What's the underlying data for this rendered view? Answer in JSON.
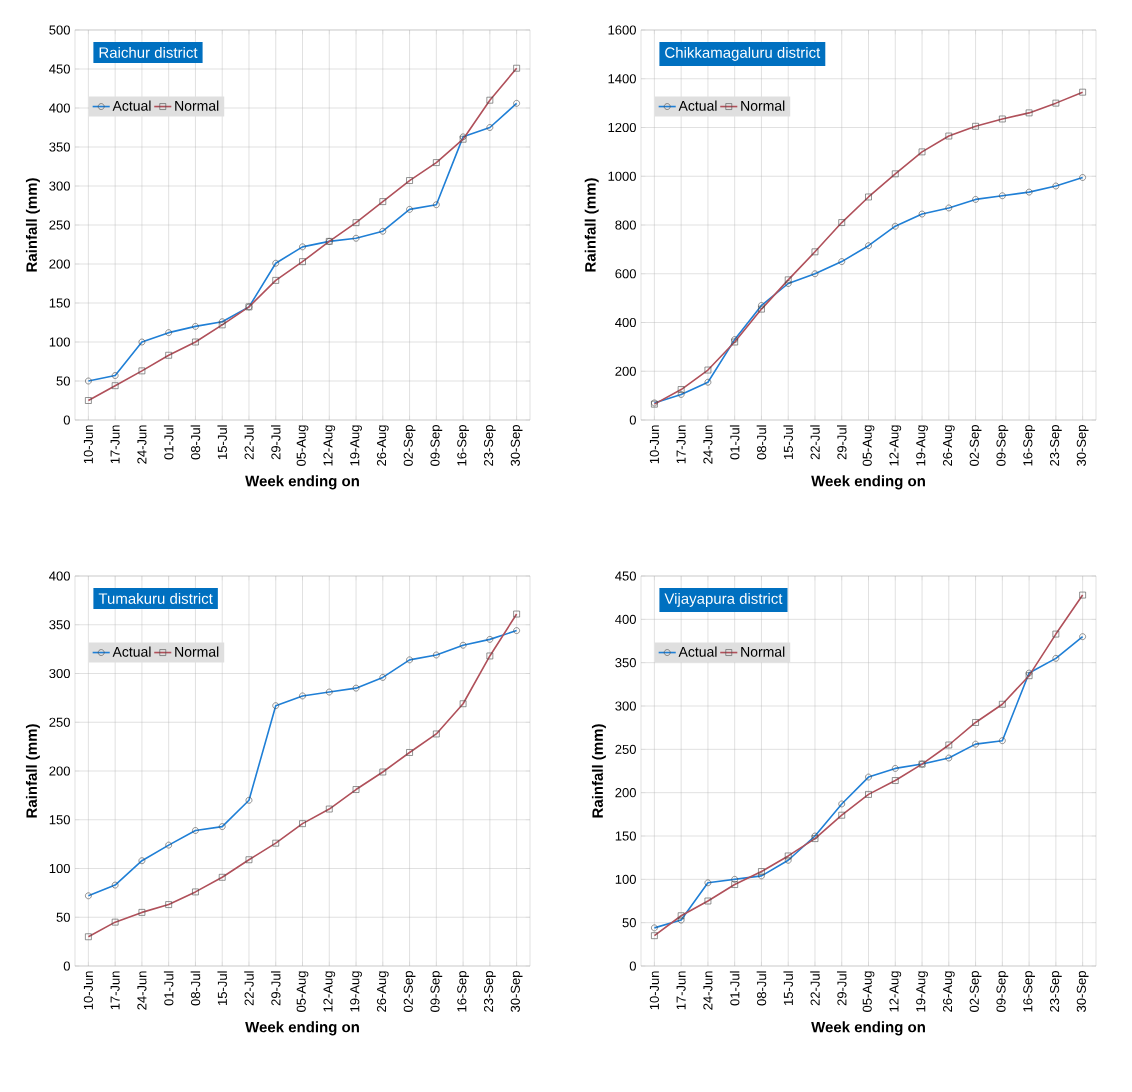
{
  "chart_data": [
    {
      "type": "line",
      "title": "Raichur district",
      "xlabel": "Week ending on",
      "ylabel": "Rainfall (mm)",
      "categories": [
        "10-Jun",
        "17-Jun",
        "24-Jun",
        "01-Jul",
        "08-Jul",
        "15-Jul",
        "22-Jul",
        "29-Jul",
        "05-Aug",
        "12-Aug",
        "19-Aug",
        "26-Aug",
        "02-Sep",
        "09-Sep",
        "16-Sep",
        "23-Sep",
        "30-Sep"
      ],
      "series": [
        {
          "name": "Actual",
          "color": "#1f7fd6",
          "marker": "circle",
          "values": [
            50,
            57,
            100,
            112,
            120,
            126,
            145,
            201,
            222,
            229,
            233,
            242,
            270,
            276,
            363,
            375,
            406
          ]
        },
        {
          "name": "Normal",
          "color": "#b0505a",
          "marker": "square",
          "values": [
            25,
            44,
            63,
            83,
            100,
            122,
            145,
            179,
            203,
            229,
            253,
            280,
            307,
            330,
            360,
            410,
            451
          ]
        }
      ],
      "ylim": [
        0,
        500
      ],
      "yticks": [
        0,
        50,
        100,
        150,
        200,
        250,
        300,
        350,
        400,
        450,
        500
      ],
      "grid": true,
      "legend": "top left"
    },
    {
      "type": "line",
      "title": "Chikkamagaluru district",
      "xlabel": "Week ending on",
      "ylabel": "Rainfall (mm)",
      "categories": [
        "10-Jun",
        "17-Jun",
        "24-Jun",
        "01-Jul",
        "08-Jul",
        "15-Jul",
        "22-Jul",
        "29-Jul",
        "05-Aug",
        "12-Aug",
        "19-Aug",
        "26-Aug",
        "02-Sep",
        "09-Sep",
        "16-Sep",
        "23-Sep",
        "30-Sep"
      ],
      "series": [
        {
          "name": "Actual",
          "color": "#1f7fd6",
          "marker": "circle",
          "values": [
            70,
            105,
            155,
            330,
            470,
            560,
            600,
            650,
            715,
            795,
            845,
            870,
            905,
            920,
            935,
            960,
            995
          ]
        },
        {
          "name": "Normal",
          "color": "#b0505a",
          "marker": "square",
          "values": [
            65,
            125,
            205,
            320,
            455,
            575,
            690,
            810,
            915,
            1010,
            1100,
            1165,
            1205,
            1235,
            1260,
            1300,
            1345
          ]
        }
      ],
      "ylim": [
        0,
        1600
      ],
      "yticks": [
        0,
        200,
        400,
        600,
        800,
        1000,
        1200,
        1400,
        1600
      ],
      "grid": true,
      "legend": "top left"
    },
    {
      "type": "line",
      "title": "Tumakuru district",
      "xlabel": "Week ending on",
      "ylabel": "Rainfall (mm)",
      "categories": [
        "10-Jun",
        "17-Jun",
        "24-Jun",
        "01-Jul",
        "08-Jul",
        "15-Jul",
        "22-Jul",
        "29-Jul",
        "05-Aug",
        "12-Aug",
        "19-Aug",
        "26-Aug",
        "02-Sep",
        "09-Sep",
        "16-Sep",
        "23-Sep",
        "30-Sep"
      ],
      "series": [
        {
          "name": "Actual",
          "color": "#1f7fd6",
          "marker": "circle",
          "values": [
            72,
            83,
            108,
            124,
            139,
            143,
            170,
            267,
            277,
            281,
            285,
            296,
            314,
            319,
            329,
            335,
            344
          ]
        },
        {
          "name": "Normal",
          "color": "#b0505a",
          "marker": "square",
          "values": [
            30,
            45,
            55,
            63,
            76,
            91,
            109,
            126,
            146,
            161,
            181,
            199,
            219,
            238,
            269,
            318,
            361
          ]
        }
      ],
      "ylim": [
        0,
        400
      ],
      "yticks": [
        0,
        50,
        100,
        150,
        200,
        250,
        300,
        350,
        400
      ],
      "grid": true,
      "legend": "top left"
    },
    {
      "type": "line",
      "title": "Vijayapura district",
      "xlabel": "Week ending on",
      "ylabel": "Rainfall (mm)",
      "categories": [
        "10-Jun",
        "17-Jun",
        "24-Jun",
        "01-Jul",
        "08-Jul",
        "15-Jul",
        "22-Jul",
        "29-Jul",
        "05-Aug",
        "12-Aug",
        "19-Aug",
        "26-Aug",
        "02-Sep",
        "09-Sep",
        "16-Sep",
        "23-Sep",
        "30-Sep"
      ],
      "series": [
        {
          "name": "Actual",
          "color": "#1f7fd6",
          "marker": "circle",
          "values": [
            44,
            53,
            96,
            100,
            104,
            122,
            150,
            187,
            218,
            228,
            233,
            240,
            256,
            260,
            338,
            355,
            380
          ]
        },
        {
          "name": "Normal",
          "color": "#b0505a",
          "marker": "square",
          "values": [
            35,
            58,
            75,
            94,
            109,
            127,
            147,
            174,
            198,
            214,
            233,
            255,
            281,
            302,
            335,
            383,
            428
          ]
        }
      ],
      "ylim": [
        0,
        450
      ],
      "yticks": [
        0,
        50,
        100,
        150,
        200,
        250,
        300,
        350,
        400,
        450
      ],
      "grid": true,
      "legend": "top left"
    }
  ]
}
